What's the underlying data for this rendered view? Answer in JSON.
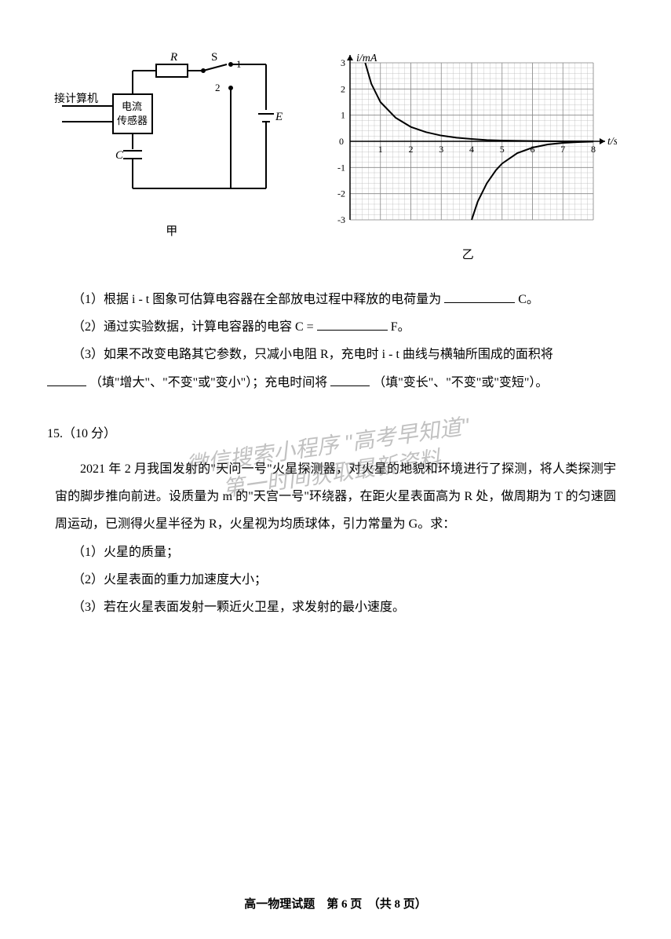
{
  "circuit": {
    "labels": {
      "R": "R",
      "S": "S",
      "node1": "1",
      "node2": "2",
      "E": "E",
      "C": "C",
      "computer": "接计算机",
      "sensor1": "电流",
      "sensor2": "传感器",
      "caption": "甲"
    },
    "colors": {
      "stroke": "#000000",
      "fill": "#ffffff"
    }
  },
  "chart": {
    "type": "line",
    "y_label": "i/mA",
    "x_label": "t/s",
    "xlim": [
      0,
      8
    ],
    "ylim": [
      -3,
      3
    ],
    "xtick_step": 1,
    "ytick_step": 1,
    "xticks": [
      1,
      2,
      3,
      4,
      5,
      6,
      7,
      8
    ],
    "yticks": [
      -3,
      -2,
      -1,
      0,
      1,
      2,
      3
    ],
    "grid_color": "#888888",
    "minor_grid_color": "#bbbbbb",
    "minor_div": 5,
    "background_color": "#ffffff",
    "line_color": "#000000",
    "line_width": 2,
    "axis_color": "#000000",
    "curve_discharge": [
      [
        0.5,
        3
      ],
      [
        0.7,
        2.2
      ],
      [
        1.0,
        1.5
      ],
      [
        1.5,
        0.9
      ],
      [
        2.0,
        0.55
      ],
      [
        2.5,
        0.35
      ],
      [
        3.0,
        0.22
      ],
      [
        3.5,
        0.14
      ],
      [
        4.0,
        0.09
      ],
      [
        4.5,
        0.05
      ],
      [
        5.0,
        0.03
      ],
      [
        6.0,
        0.01
      ],
      [
        7.0,
        0.0
      ],
      [
        8.0,
        0.0
      ]
    ],
    "curve_charge": [
      [
        4.0,
        -3.0
      ],
      [
        4.2,
        -2.3
      ],
      [
        4.5,
        -1.6
      ],
      [
        4.8,
        -1.1
      ],
      [
        5.0,
        -0.85
      ],
      [
        5.5,
        -0.45
      ],
      [
        6.0,
        -0.24
      ],
      [
        6.5,
        -0.12
      ],
      [
        7.0,
        -0.06
      ],
      [
        7.5,
        -0.03
      ],
      [
        8.0,
        -0.01
      ]
    ],
    "caption": "乙",
    "label_fontsize": 14
  },
  "q14": {
    "sub1": "（1）根据 i - t 图象可估算电容器在全部放电过程中释放的电荷量为",
    "sub1_unit": "C。",
    "sub2": "（2）通过实验数据，计算电容器的电容 C =",
    "sub2_unit": "F。",
    "sub3_a": "（3）如果不改变电路其它参数，只减小电阻 R，充电时 i - t 曲线与横轴所围成的面积将",
    "sub3_b": "（填\"增大\"、\"不变\"或\"变小\"）；充电时间将",
    "sub3_c": "（填\"变长\"、\"不变\"或\"变短\"）。"
  },
  "q15": {
    "header": "15.（10 分）",
    "body": "2021 年 2 月我国发射的\"天问一号\"火星探测器，对火星的地貌和环境进行了探测，将人类探测宇宙的脚步推向前进。设质量为 m 的\"天宫一号\"环绕器，在距火星表面高为 R 处，做周期为 T 的匀速圆周运动，已测得火星半径为 R，火星视为均质球体，引力常量为 G。求：",
    "sub1": "（1）火星的质量；",
    "sub2": "（2）火星表面的重力加速度大小；",
    "sub3": "（3）若在火星表面发射一颗近火卫星，求发射的最小速度。"
  },
  "watermark": {
    "line1": "微信搜索小程序 \"高考早知道\"",
    "line2": "第一时间获取最新资料"
  },
  "footer": "高一物理试题　第 6 页　（共 8 页）"
}
